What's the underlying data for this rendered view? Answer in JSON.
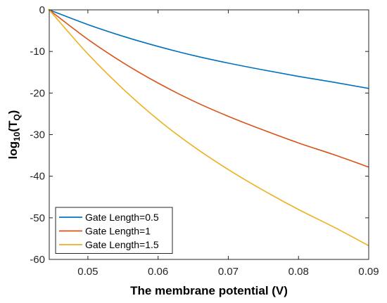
{
  "chart_data": {
    "type": "line",
    "xlabel": "The membrane potential (V)",
    "ylabel": {
      "prefix": "log",
      "sub1": "10",
      "mid": "(T",
      "sub2": "Q",
      "suffix": ")"
    },
    "xlim": [
      0.0445,
      0.09
    ],
    "ylim": [
      -60,
      0
    ],
    "xticks": [
      0.05,
      0.06,
      0.07,
      0.08,
      0.09
    ],
    "xtick_labels": [
      "0.05",
      "0.06",
      "0.07",
      "0.08",
      "0.09"
    ],
    "yticks": [
      0,
      -10,
      -20,
      -30,
      -40,
      -50,
      -60
    ],
    "ytick_labels": [
      "0",
      "-10",
      "-20",
      "-30",
      "-40",
      "-50",
      "-60"
    ],
    "grid": false,
    "legend_position": "bottom-left",
    "x": [
      0.0445,
      0.045,
      0.05,
      0.055,
      0.06,
      0.065,
      0.07,
      0.075,
      0.08,
      0.085,
      0.09
    ],
    "series": [
      {
        "name": "Gate Length=0.5",
        "color": "#0072BD",
        "values": [
          0,
          -0.33,
          -3.55,
          -6.35,
          -8.8,
          -10.95,
          -12.8,
          -14.45,
          -16.0,
          -17.4,
          -18.9
        ]
      },
      {
        "name": "Gate Length=1",
        "color": "#D95319",
        "values": [
          0,
          -0.67,
          -7.1,
          -12.7,
          -17.6,
          -21.9,
          -25.6,
          -28.9,
          -32.0,
          -34.8,
          -37.8
        ]
      },
      {
        "name": "Gate Length=1.5",
        "color": "#EDB120",
        "values": [
          0,
          -1.0,
          -10.6,
          -19.0,
          -26.4,
          -32.8,
          -38.4,
          -43.4,
          -48.0,
          -52.2,
          -56.7
        ]
      }
    ]
  }
}
